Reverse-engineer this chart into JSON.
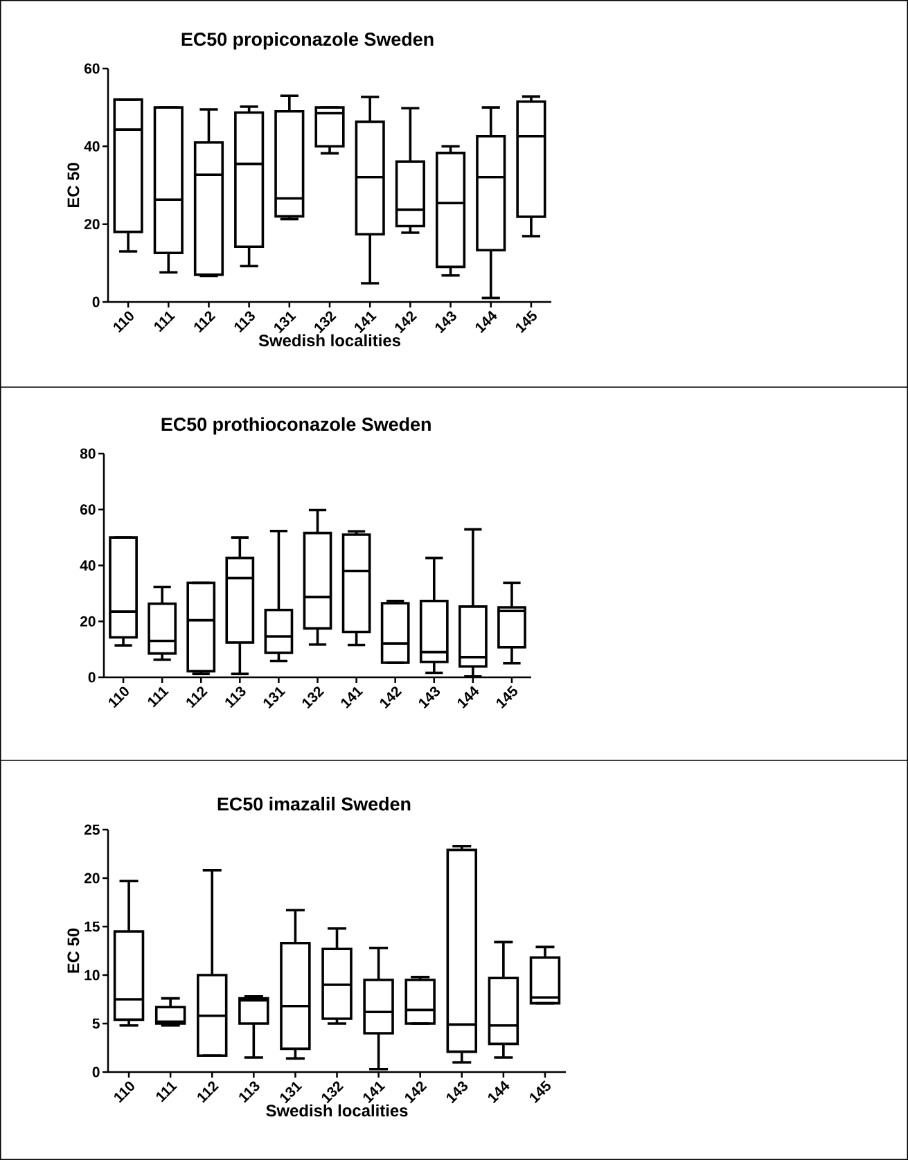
{
  "chart_data": [
    {
      "type": "box",
      "title": "EC50 propiconazole Sweden",
      "xlabel": "Swedish localities",
      "ylabel": "EC 50",
      "categories": [
        "110",
        "111",
        "112",
        "113",
        "131",
        "132",
        "141",
        "142",
        "143",
        "144",
        "145"
      ],
      "ylim": [
        0,
        60
      ],
      "yticks": [
        0,
        20,
        40,
        60
      ],
      "boxes": [
        {
          "low": 13,
          "q1": 18,
          "median": 44.3,
          "q3": 52,
          "high": 52
        },
        {
          "low": 7.6,
          "q1": 12.6,
          "median": 26.3,
          "q3": 50,
          "high": 50
        },
        {
          "low": 6.7,
          "q1": 7,
          "median": 32.7,
          "q3": 41,
          "high": 49.5
        },
        {
          "low": 9.2,
          "q1": 14.2,
          "median": 35.5,
          "q3": 48.7,
          "high": 50.2
        },
        {
          "low": 21.3,
          "q1": 22,
          "median": 26.6,
          "q3": 49,
          "high": 53
        },
        {
          "low": 38.2,
          "q1": 40,
          "median": 48.5,
          "q3": 50,
          "high": 50
        },
        {
          "low": 4.8,
          "q1": 17.4,
          "median": 32.1,
          "q3": 46.3,
          "high": 52.7
        },
        {
          "low": 17.8,
          "q1": 19.5,
          "median": 23.7,
          "q3": 36.1,
          "high": 49.8
        },
        {
          "low": 6.8,
          "q1": 9,
          "median": 25.4,
          "q3": 38.3,
          "high": 40
        },
        {
          "low": 1,
          "q1": 13.3,
          "median": 32.1,
          "q3": 42.6,
          "high": 50
        },
        {
          "low": 16.9,
          "q1": 21.9,
          "median": 42.6,
          "q3": 51.5,
          "high": 52.8
        }
      ]
    },
    {
      "type": "box",
      "title": "EC50 prothioconazole Sweden",
      "categories": [
        "110",
        "111",
        "112",
        "113",
        "131",
        "132",
        "141",
        "142",
        "143",
        "144",
        "145"
      ],
      "ylim": [
        0,
        80
      ],
      "yticks": [
        0,
        20,
        40,
        60,
        80
      ],
      "boxes": [
        {
          "low": 11.4,
          "q1": 14.3,
          "median": 23.5,
          "q3": 50,
          "high": 50
        },
        {
          "low": 6.3,
          "q1": 8.5,
          "median": 13,
          "q3": 26.3,
          "high": 32.3
        },
        {
          "low": 1.2,
          "q1": 2.2,
          "median": 20.4,
          "q3": 33.8,
          "high": 33.8
        },
        {
          "low": 1.2,
          "q1": 12.4,
          "median": 35.5,
          "q3": 42.7,
          "high": 50
        },
        {
          "low": 5.8,
          "q1": 8.8,
          "median": 14.6,
          "q3": 24.1,
          "high": 52.3
        },
        {
          "low": 11.7,
          "q1": 17.5,
          "median": 28.7,
          "q3": 51.6,
          "high": 59.8
        },
        {
          "low": 11.5,
          "q1": 16.2,
          "median": 38,
          "q3": 51,
          "high": 52.2
        },
        {
          "low": 5.2,
          "q1": 5.2,
          "median": 12.1,
          "q3": 26.5,
          "high": 27.3
        },
        {
          "low": 1.6,
          "q1": 5.5,
          "median": 9,
          "q3": 27.3,
          "high": 42.7
        },
        {
          "low": 0.3,
          "q1": 3.9,
          "median": 7.2,
          "q3": 25.3,
          "high": 52.9
        },
        {
          "low": 5,
          "q1": 10.7,
          "median": 23.7,
          "q3": 25,
          "high": 33.8
        }
      ]
    },
    {
      "type": "box",
      "title": "EC50 imazalil Sweden",
      "xlabel": "Swedish localities",
      "ylabel": "EC 50",
      "categories": [
        "110",
        "111",
        "112",
        "113",
        "131",
        "132",
        "141",
        "142",
        "143",
        "144",
        "145"
      ],
      "ylim": [
        0,
        25
      ],
      "yticks": [
        0,
        5,
        10,
        15,
        20,
        25
      ],
      "boxes": [
        {
          "low": 4.8,
          "q1": 5.4,
          "median": 7.5,
          "q3": 14.5,
          "high": 19.7
        },
        {
          "low": 4.8,
          "q1": 5,
          "median": 5.2,
          "q3": 6.7,
          "high": 7.6
        },
        {
          "low": 1.7,
          "q1": 1.7,
          "median": 5.8,
          "q3": 10,
          "high": 20.8
        },
        {
          "low": 1.5,
          "q1": 5,
          "median": 7.4,
          "q3": 7.6,
          "high": 7.8
        },
        {
          "low": 1.4,
          "q1": 2.4,
          "median": 6.8,
          "q3": 13.3,
          "high": 16.7
        },
        {
          "low": 5,
          "q1": 5.5,
          "median": 9,
          "q3": 12.7,
          "high": 14.8
        },
        {
          "low": 0.3,
          "q1": 4,
          "median": 6.2,
          "q3": 9.5,
          "high": 12.8
        },
        {
          "low": 5,
          "q1": 5,
          "median": 6.4,
          "q3": 9.5,
          "high": 9.8
        },
        {
          "low": 1,
          "q1": 2.1,
          "median": 4.9,
          "q3": 22.9,
          "high": 23.3
        },
        {
          "low": 1.5,
          "q1": 2.9,
          "median": 4.8,
          "q3": 9.7,
          "high": 13.4
        },
        {
          "low": 7.1,
          "q1": 7.1,
          "median": 7.7,
          "q3": 11.8,
          "high": 12.9
        }
      ]
    }
  ]
}
